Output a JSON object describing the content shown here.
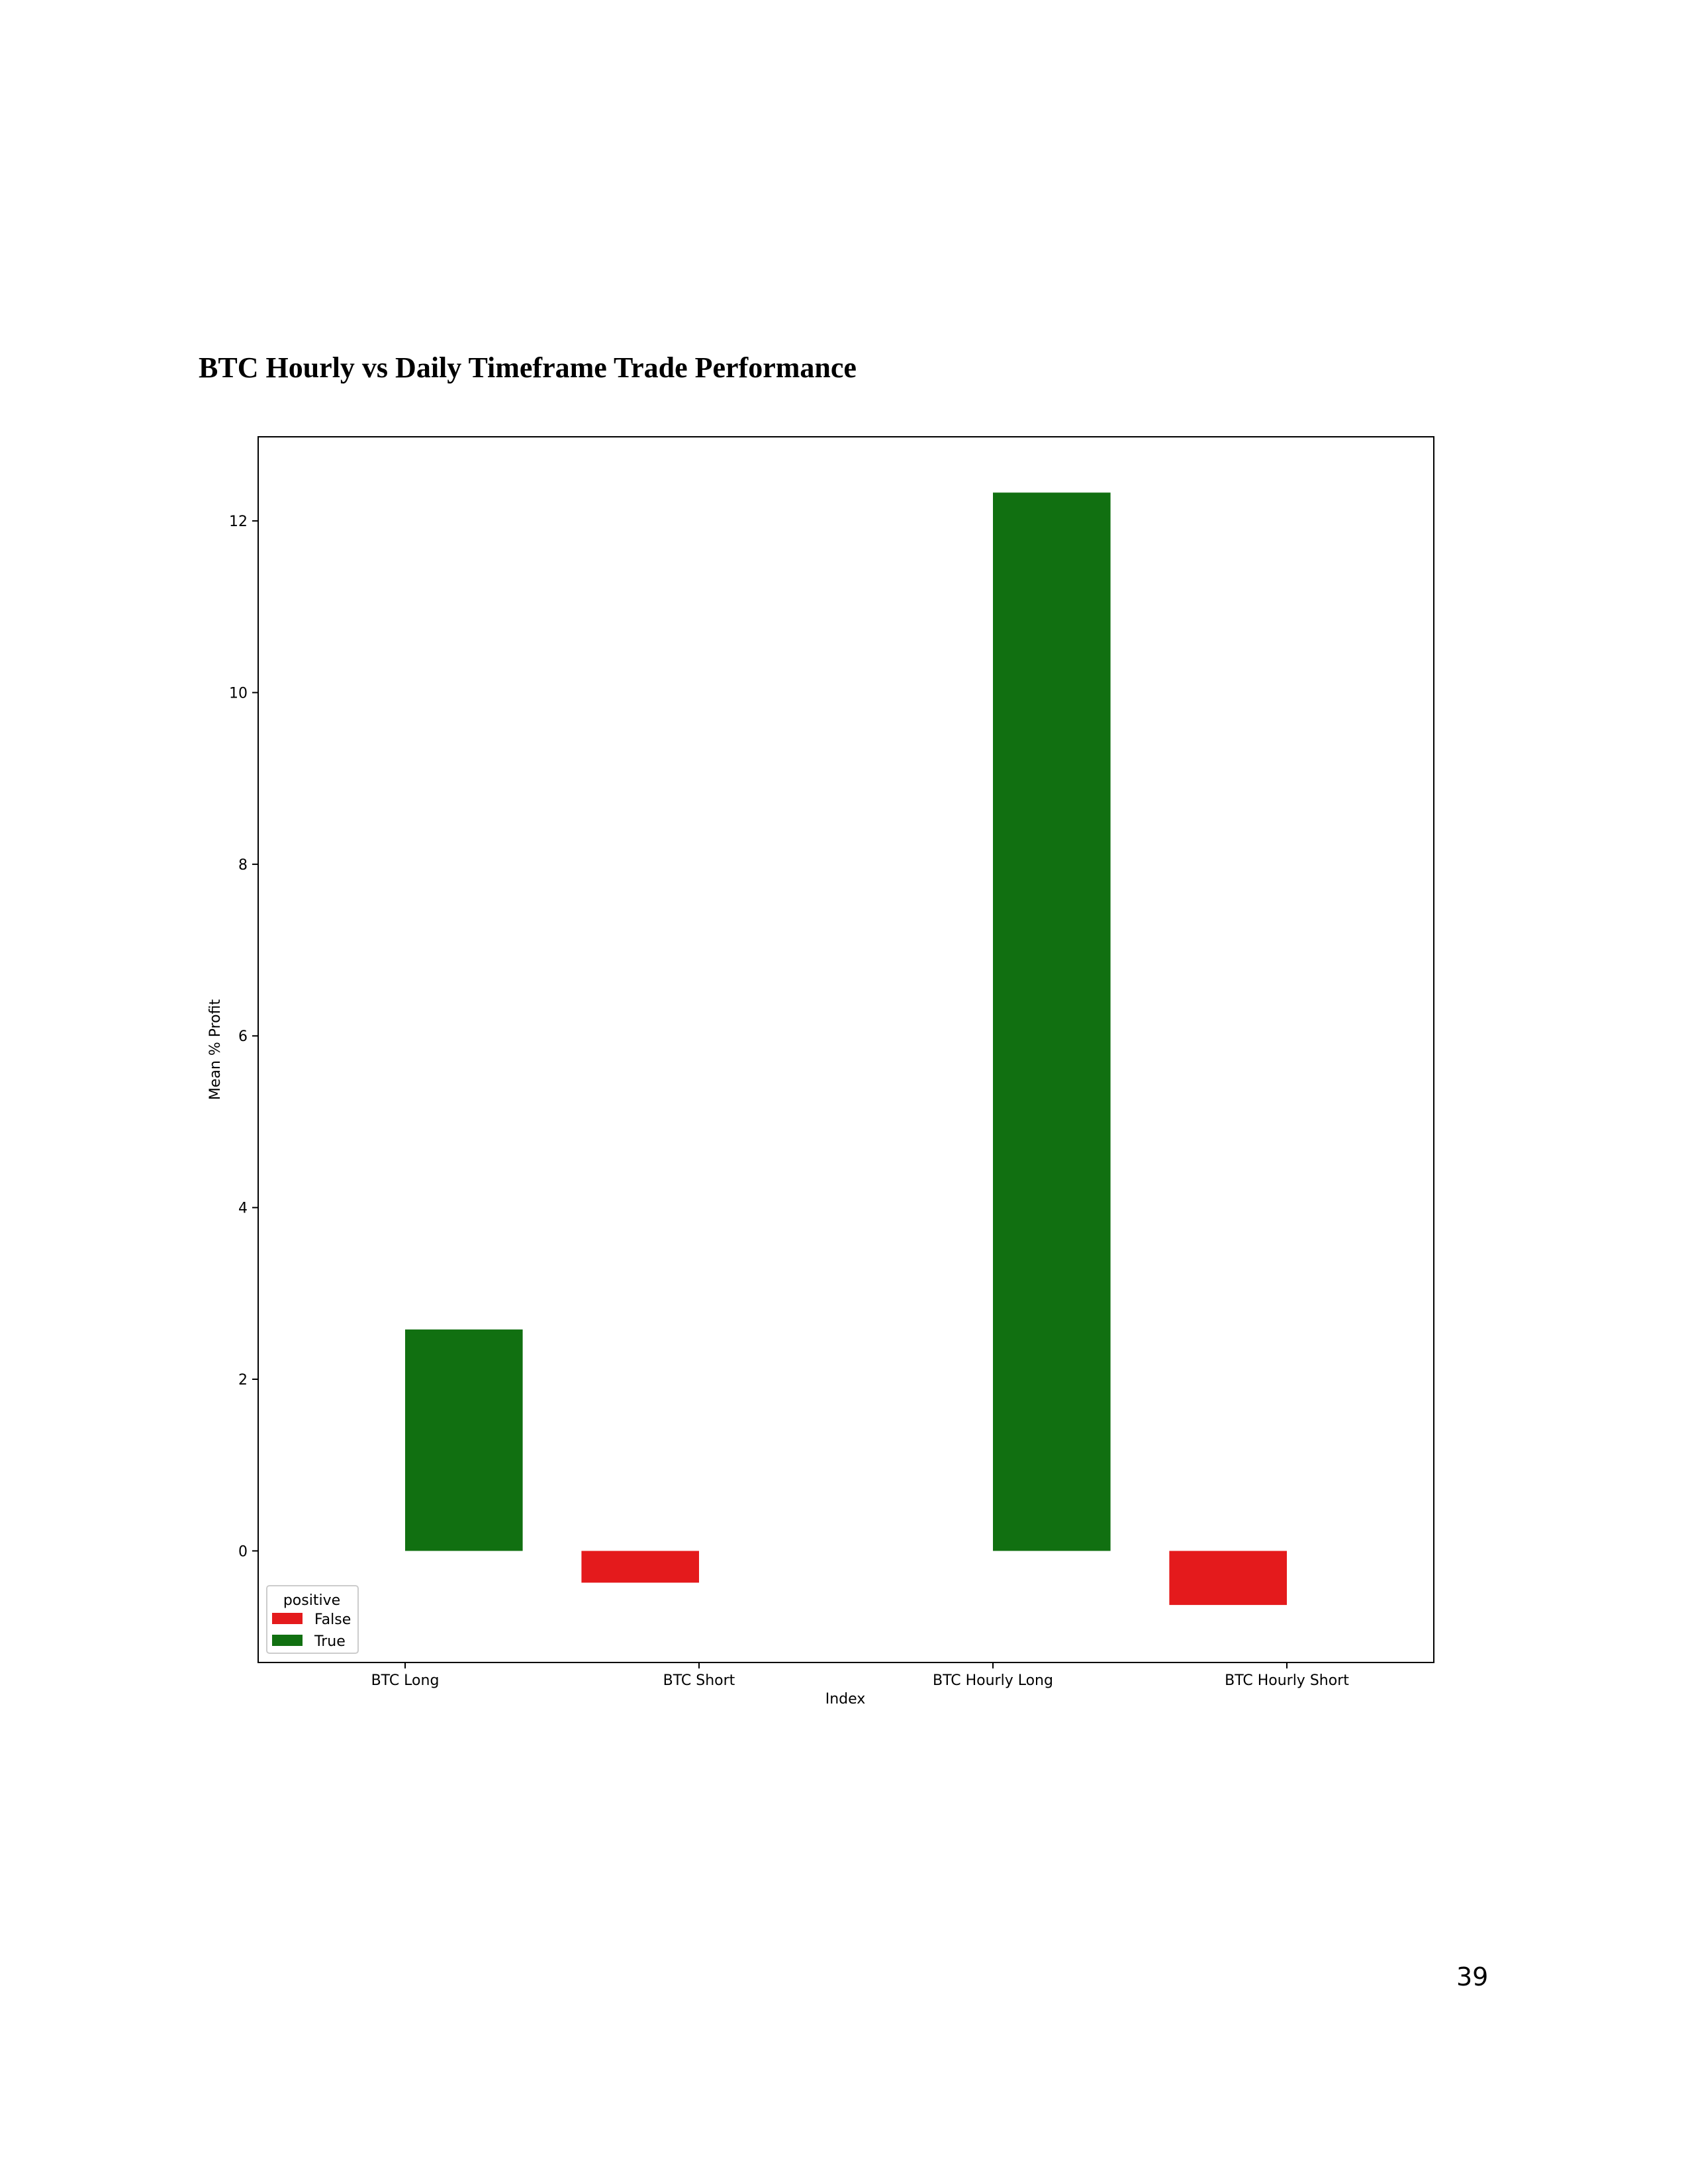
{
  "page": {
    "heading": "BTC Hourly vs Daily Timeframe Trade Performance",
    "page_number": "39"
  },
  "chart_data": {
    "type": "bar",
    "title": "",
    "xlabel": "Index",
    "ylabel": "Mean % Profit",
    "categories": [
      "BTC Long",
      "BTC Short",
      "BTC Hourly Long",
      "BTC Hourly Short"
    ],
    "hue_name": "positive",
    "series": [
      {
        "name": "False",
        "color": "#e41a1c",
        "values": [
          null,
          -0.37,
          null,
          -0.63
        ]
      },
      {
        "name": "True",
        "color": "#117011",
        "values": [
          2.58,
          null,
          12.33,
          null
        ]
      }
    ],
    "ylim": [
      -1.3,
      12.98
    ],
    "yticks": [
      0,
      2,
      4,
      6,
      8,
      10,
      12
    ],
    "grid": false,
    "legend_position": "lower-left"
  }
}
